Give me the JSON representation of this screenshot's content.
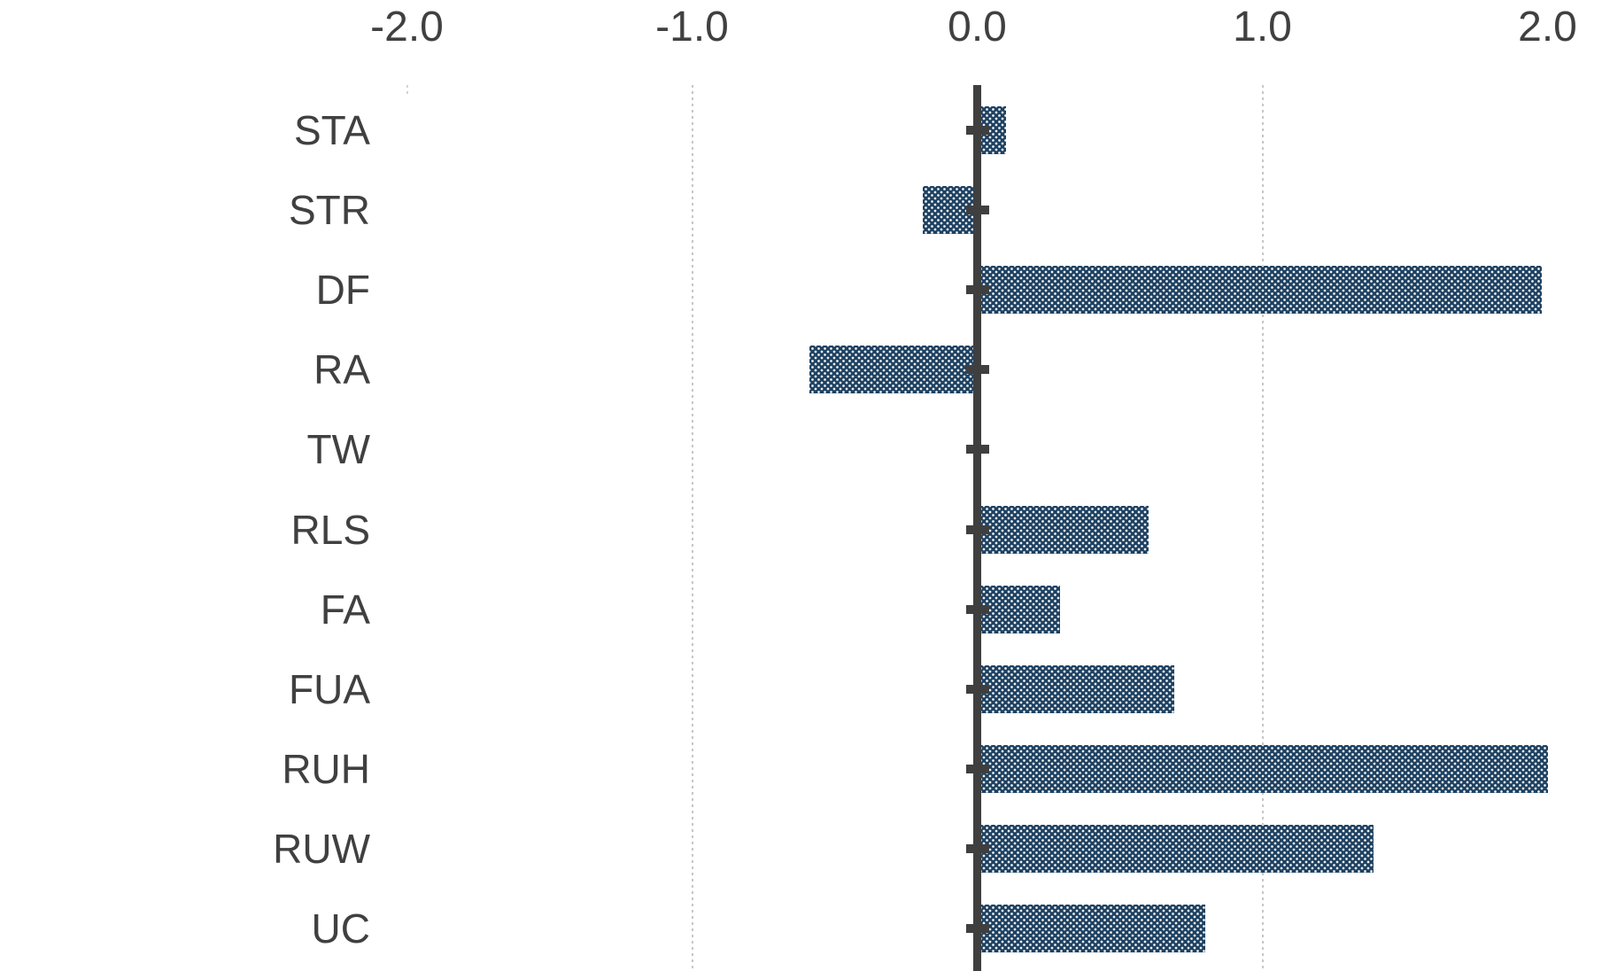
{
  "chart_data": {
    "type": "bar",
    "orientation": "horizontal",
    "title": "",
    "xlabel": "",
    "ylabel": "",
    "categories": [
      "STA",
      "STR",
      "DF",
      "RA",
      "TW",
      "RLS",
      "FA",
      "FUA",
      "RUH",
      "RUW",
      "UC"
    ],
    "values": [
      0.1,
      -0.19,
      1.98,
      -0.59,
      0.0,
      0.6,
      0.29,
      0.69,
      2.0,
      1.39,
      0.8
    ],
    "x_ticks": [
      -2.0,
      -1.0,
      0.0,
      1.0,
      2.0
    ],
    "x_tick_labels": [
      "-2.0",
      "-1.0",
      "0.0",
      "1.0",
      "2.0"
    ],
    "xlim": [
      -2.0,
      2.0
    ],
    "gridlines_at": [
      -1.0,
      1.0
    ],
    "grid_style": "dotted",
    "legend": "none",
    "zero_axis": true,
    "bar_pattern": "white-dot-grid",
    "colors": {
      "bar": "#1e4161",
      "axis": "#3f3f3f",
      "text": "#404040",
      "gridline": "#c7c7c7",
      "background": "#ffffff"
    }
  }
}
